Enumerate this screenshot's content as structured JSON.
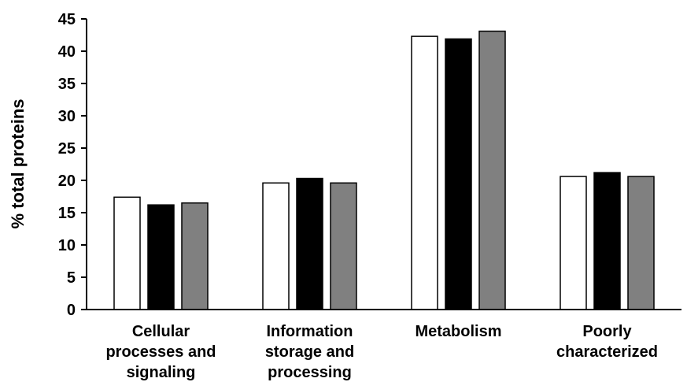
{
  "chart_data": {
    "type": "bar",
    "ylabel": "% total proteins",
    "xlabel": "",
    "ylim": [
      0,
      45
    ],
    "yticks": [
      0,
      5,
      10,
      15,
      20,
      25,
      30,
      35,
      40,
      45
    ],
    "categories": [
      [
        "Cellular",
        "processes and",
        "signaling"
      ],
      [
        "Information",
        "storage and",
        "processing"
      ],
      [
        "Metabolism"
      ],
      [
        "Poorly",
        "characterized"
      ]
    ],
    "series": [
      {
        "color": "#ffffff",
        "values": [
          17.4,
          19.6,
          42.3,
          20.6
        ]
      },
      {
        "color": "#000000",
        "values": [
          16.2,
          20.3,
          41.9,
          21.2
        ]
      },
      {
        "color": "#808080",
        "values": [
          16.5,
          19.6,
          43.1,
          20.6
        ]
      }
    ],
    "grid": false,
    "legend": "none"
  }
}
